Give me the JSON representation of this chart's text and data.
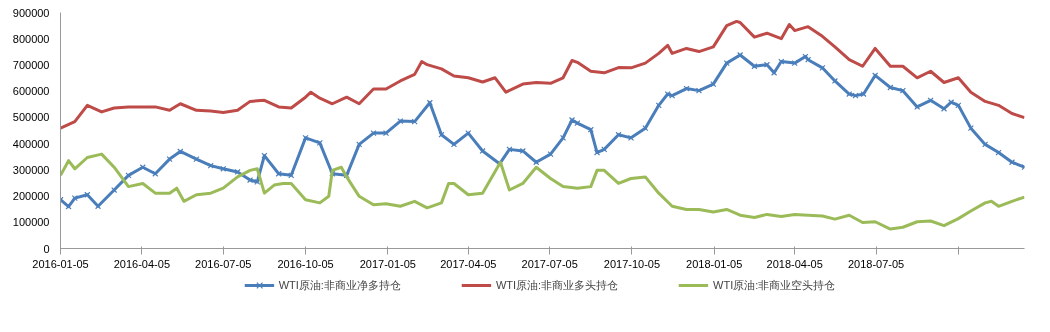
{
  "chart_data": {
    "type": "line",
    "xlim": [
      "2016-01-05",
      "2018-12-18"
    ],
    "xticks": [
      {
        "value": "2016-01-05",
        "label": "2016-01-05"
      },
      {
        "value": "2016-04-05",
        "label": "2016-04-05"
      },
      {
        "value": "2016-07-05",
        "label": "2016-07-05"
      },
      {
        "value": "2016-10-05",
        "label": "2016-10-05"
      },
      {
        "value": "2017-01-05",
        "label": "2017-01-05"
      },
      {
        "value": "2017-04-05",
        "label": "2017-04-05"
      },
      {
        "value": "2017-07-05",
        "label": "2017-07-05"
      },
      {
        "value": "2017-10-05",
        "label": "2017-10-05"
      },
      {
        "value": "2018-01-05",
        "label": "2018-01-05"
      },
      {
        "value": "2018-04-05",
        "label": "2018-04-05"
      },
      {
        "value": "2018-07-05",
        "label": "2018-07-05"
      },
      {
        "value": "2018-10-05",
        "label": null
      }
    ],
    "ylim": [
      0,
      900000
    ],
    "yticks": [
      0,
      100000,
      200000,
      300000,
      400000,
      500000,
      600000,
      700000,
      800000,
      900000
    ],
    "grid": false,
    "legend": "bottom",
    "line_style": "solid",
    "series": [
      {
        "name": "WTI原油:非商业净多持仓",
        "color": "#4a7ebb",
        "marker": "cross",
        "x": [
          "2016-01-05",
          "2016-01-14",
          "2016-01-21",
          "2016-02-04",
          "2016-02-16",
          "2016-03-05",
          "2016-03-21",
          "2016-04-06",
          "2016-04-20",
          "2016-05-06",
          "2016-05-18",
          "2016-06-05",
          "2016-06-21",
          "2016-07-05",
          "2016-07-21",
          "2016-08-04",
          "2016-08-12",
          "2016-08-20",
          "2016-09-05",
          "2016-09-19",
          "2016-10-05",
          "2016-10-21",
          "2016-11-04",
          "2016-11-20",
          "2016-12-04",
          "2016-12-20",
          "2017-01-03",
          "2017-01-19",
          "2017-02-04",
          "2017-02-21",
          "2017-03-06",
          "2017-03-20",
          "2017-04-05",
          "2017-04-21",
          "2017-05-10",
          "2017-05-21",
          "2017-06-05",
          "2017-06-20",
          "2017-07-06",
          "2017-07-20",
          "2017-07-30",
          "2017-08-05",
          "2017-08-20",
          "2017-08-27",
          "2017-09-04",
          "2017-09-20",
          "2017-10-04",
          "2017-10-20",
          "2017-11-04",
          "2017-11-14",
          "2017-11-19",
          "2017-12-05",
          "2017-12-19",
          "2018-01-04",
          "2018-01-19",
          "2018-02-03",
          "2018-02-19",
          "2018-03-05",
          "2018-03-13",
          "2018-03-21",
          "2018-04-05",
          "2018-04-17",
          "2018-04-20",
          "2018-05-06",
          "2018-05-20",
          "2018-06-05",
          "2018-06-12",
          "2018-06-21",
          "2018-07-04",
          "2018-07-21",
          "2018-08-04",
          "2018-08-20",
          "2018-09-04",
          "2018-09-19",
          "2018-09-27",
          "2018-10-05",
          "2018-10-19",
          "2018-11-04",
          "2018-11-19",
          "2018-12-04",
          "2018-12-18"
        ],
        "values": [
          186000,
          160000,
          192000,
          205000,
          161000,
          223000,
          279000,
          310000,
          285000,
          341000,
          370000,
          341000,
          316000,
          304000,
          292000,
          261000,
          254000,
          354000,
          285000,
          279000,
          422000,
          403000,
          285000,
          279000,
          397000,
          440000,
          440000,
          486000,
          484000,
          556000,
          434000,
          397000,
          440000,
          372000,
          323000,
          378000,
          372000,
          329000,
          360000,
          422000,
          490000,
          478000,
          453000,
          366000,
          378000,
          434000,
          422000,
          459000,
          546000,
          589000,
          583000,
          610000,
          602000,
          627000,
          707000,
          738000,
          695000,
          701000,
          670000,
          713000,
          707000,
          732000,
          720000,
          689000,
          639000,
          589000,
          583000,
          589000,
          660000,
          614000,
          602000,
          540000,
          565000,
          533000,
          558000,
          546000,
          459000,
          397000,
          366000,
          329000,
          310000
        ]
      },
      {
        "name": "WTI原油:非商业多头持仓",
        "color": "#be4b48",
        "marker": "none",
        "x": [
          "2016-01-05",
          "2016-01-21",
          "2016-02-04",
          "2016-02-20",
          "2016-03-05",
          "2016-03-21",
          "2016-04-06",
          "2016-04-20",
          "2016-05-06",
          "2016-05-18",
          "2016-06-05",
          "2016-06-21",
          "2016-07-05",
          "2016-07-21",
          "2016-08-04",
          "2016-08-20",
          "2016-09-05",
          "2016-09-19",
          "2016-10-05",
          "2016-10-11",
          "2016-10-21",
          "2016-11-04",
          "2016-11-20",
          "2016-12-04",
          "2016-12-20",
          "2017-01-03",
          "2017-01-19",
          "2017-02-04",
          "2017-02-12",
          "2017-02-18",
          "2017-03-06",
          "2017-03-20",
          "2017-04-05",
          "2017-04-21",
          "2017-05-05",
          "2017-05-17",
          "2017-06-05",
          "2017-06-20",
          "2017-07-06",
          "2017-07-20",
          "2017-07-30",
          "2017-08-05",
          "2017-08-20",
          "2017-09-04",
          "2017-09-20",
          "2017-10-04",
          "2017-10-20",
          "2017-11-04",
          "2017-11-14",
          "2017-11-19",
          "2017-12-05",
          "2017-12-19",
          "2018-01-04",
          "2018-01-19",
          "2018-01-30",
          "2018-02-03",
          "2018-02-19",
          "2018-03-05",
          "2018-03-21",
          "2018-03-30",
          "2018-04-05",
          "2018-04-20",
          "2018-05-06",
          "2018-05-20",
          "2018-06-05",
          "2018-06-20",
          "2018-07-04",
          "2018-07-21",
          "2018-08-04",
          "2018-08-20",
          "2018-09-04",
          "2018-09-19",
          "2018-10-05",
          "2018-10-19",
          "2018-11-04",
          "2018-11-19",
          "2018-12-04",
          "2018-12-18"
        ],
        "values": [
          459000,
          484000,
          546000,
          521000,
          536000,
          540000,
          540000,
          540000,
          527000,
          552000,
          527000,
          524000,
          519000,
          527000,
          561000,
          565000,
          540000,
          536000,
          577000,
          596000,
          573000,
          552000,
          577000,
          552000,
          608000,
          608000,
          639000,
          664000,
          713000,
          701000,
          685000,
          658000,
          651000,
          635000,
          651000,
          596000,
          627000,
          633000,
          630000,
          651000,
          717000,
          710000,
          676000,
          670000,
          690000,
          689000,
          707000,
          744000,
          775000,
          744000,
          763000,
          751000,
          769000,
          850000,
          866000,
          862000,
          806000,
          821000,
          800000,
          854000,
          831000,
          846000,
          809000,
          769000,
          720000,
          695000,
          763000,
          695000,
          695000,
          651000,
          676000,
          633000,
          651000,
          596000,
          561000,
          546000,
          515000,
          499000
        ]
      },
      {
        "name": "WTI原油:非商业空头持仓",
        "color": "#9bbb59",
        "marker": "none",
        "x": [
          "2016-01-05",
          "2016-01-14",
          "2016-01-21",
          "2016-02-04",
          "2016-02-20",
          "2016-03-05",
          "2016-03-21",
          "2016-04-06",
          "2016-04-20",
          "2016-05-06",
          "2016-05-14",
          "2016-05-22",
          "2016-06-05",
          "2016-06-21",
          "2016-07-05",
          "2016-07-21",
          "2016-08-04",
          "2016-08-12",
          "2016-08-20",
          "2016-08-31",
          "2016-09-10",
          "2016-09-19",
          "2016-10-05",
          "2016-10-21",
          "2016-10-31",
          "2016-11-04",
          "2016-11-14",
          "2016-11-20",
          "2016-12-04",
          "2016-12-20",
          "2017-01-03",
          "2017-01-19",
          "2017-02-04",
          "2017-02-18",
          "2017-03-06",
          "2017-03-14",
          "2017-03-20",
          "2017-04-05",
          "2017-04-21",
          "2017-05-11",
          "2017-05-21",
          "2017-06-05",
          "2017-06-20",
          "2017-07-06",
          "2017-07-20",
          "2017-08-05",
          "2017-08-20",
          "2017-08-27",
          "2017-09-04",
          "2017-09-20",
          "2017-10-04",
          "2017-10-20",
          "2017-11-04",
          "2017-11-19",
          "2017-12-05",
          "2017-12-19",
          "2018-01-04",
          "2018-01-19",
          "2018-02-03",
          "2018-02-19",
          "2018-03-05",
          "2018-03-21",
          "2018-04-05",
          "2018-04-20",
          "2018-05-06",
          "2018-05-20",
          "2018-06-05",
          "2018-06-20",
          "2018-07-04",
          "2018-07-21",
          "2018-08-04",
          "2018-08-20",
          "2018-09-04",
          "2018-09-19",
          "2018-10-05",
          "2018-10-19",
          "2018-11-04",
          "2018-11-11",
          "2018-11-19",
          "2018-12-04",
          "2018-12-18"
        ],
        "values": [
          279000,
          335000,
          304000,
          347000,
          360000,
          310000,
          236000,
          248000,
          211000,
          211000,
          230000,
          180000,
          205000,
          211000,
          230000,
          273000,
          298000,
          304000,
          211000,
          242000,
          248000,
          248000,
          186000,
          174000,
          199000,
          298000,
          310000,
          273000,
          199000,
          167000,
          171000,
          161000,
          180000,
          155000,
          174000,
          248000,
          248000,
          205000,
          211000,
          329000,
          223000,
          248000,
          310000,
          267000,
          236000,
          230000,
          236000,
          298000,
          298000,
          248000,
          267000,
          273000,
          211000,
          161000,
          149000,
          149000,
          139000,
          149000,
          127000,
          118000,
          130000,
          122000,
          130000,
          127000,
          124000,
          112000,
          127000,
          99000,
          102000,
          74000,
          81000,
          102000,
          105000,
          87000,
          114000,
          143000,
          174000,
          180000,
          161000,
          180000,
          196000
        ]
      }
    ]
  }
}
